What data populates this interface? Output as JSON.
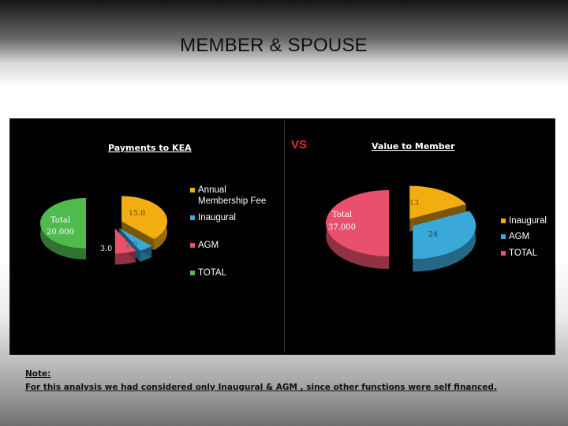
{
  "slide": {
    "title": "MEMBER & SPOUSE",
    "vs_label": "VS",
    "note_heading": "Note:",
    "note_text": "For this analysis we had considered only Inaugural & AGM , since other  functions were self financed."
  },
  "colors": {
    "annual": "#f2ae10",
    "inaugural": "#3aa8d8",
    "agm": "#e8506e",
    "total": "#4fba4d"
  },
  "chart_data": [
    {
      "type": "pie",
      "title": "Payments to KEA",
      "legend_position": "right",
      "series": [
        {
          "values": [
            15.0,
            2.0,
            3.0,
            20.0
          ],
          "labels": [
            "15.0",
            "2.0",
            "3.0",
            "20.000"
          ]
        }
      ],
      "categories": [
        "Annual Membership Fee",
        "Inaugural",
        "AGM",
        "TOTAL"
      ],
      "slice_texts": [
        "15.0",
        "2.0",
        "3.0",
        "Total",
        "20.000"
      ]
    },
    {
      "type": "pie",
      "title": "Value to Member",
      "legend_position": "right",
      "series": [
        {
          "values": [
            13,
            24,
            37.0
          ],
          "labels": [
            "13",
            "24",
            "37.000"
          ]
        }
      ],
      "categories": [
        "Inaugural",
        "AGM",
        "TOTAL"
      ],
      "slice_texts": [
        "13",
        "24",
        "Total",
        "37.000"
      ]
    }
  ]
}
